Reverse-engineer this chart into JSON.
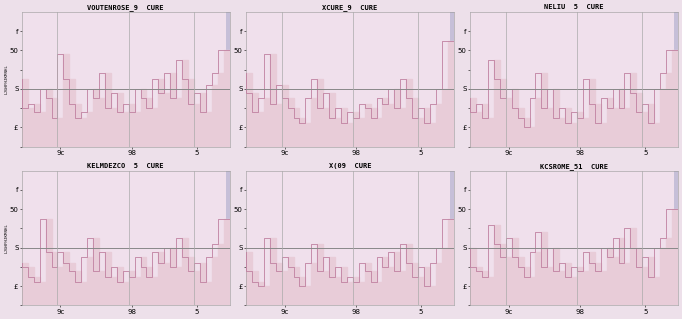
{
  "titles": [
    "VOUTENROSE_9  CURE",
    "XCURE_9  CURE",
    "NELIU  5  CURE",
    "KELMDEZCO  5  CURE",
    "X(09  CURE",
    "KCSROME_51  CURE"
  ],
  "x_tick_labels": [
    "9c",
    "98",
    "5"
  ],
  "x_tick_pos": [
    6,
    18,
    29
  ],
  "ylim": [
    0,
    7
  ],
  "y_ticks": [
    0,
    1,
    2,
    3,
    4,
    5,
    6
  ],
  "y_tick_labels": [
    "",
    "£",
    "",
    "S",
    "",
    "50",
    "f"
  ],
  "hline": 3,
  "bar_fill_color": "#e8ccd8",
  "bar_edge_color": "#c080a0",
  "bg_color": "#f0e0ec",
  "fig_color": "#ede0ea",
  "vbar_color": "#aaaacc",
  "n": 35,
  "ylabel_text": "LJGHFHJKMNHL",
  "series": [
    [
      3.5,
      2.0,
      2.2,
      1.8,
      3.0,
      2.5,
      1.5,
      4.8,
      3.5,
      2.2,
      1.5,
      1.8,
      3.0,
      2.5,
      3.8,
      2.0,
      2.8,
      1.8,
      2.2,
      1.8,
      3.0,
      2.5,
      2.0,
      3.5,
      2.8,
      3.8,
      2.5,
      4.5,
      3.5,
      2.2,
      2.8,
      1.8,
      3.2,
      3.8,
      5.0
    ],
    [
      3.8,
      2.8,
      1.8,
      2.5,
      4.8,
      2.2,
      3.2,
      2.5,
      2.0,
      1.5,
      1.2,
      2.5,
      3.5,
      2.0,
      2.8,
      1.5,
      2.0,
      1.2,
      1.8,
      1.5,
      2.2,
      2.0,
      1.5,
      2.5,
      2.2,
      3.0,
      2.0,
      3.5,
      2.5,
      1.5,
      2.0,
      1.2,
      2.2,
      3.0,
      5.5
    ],
    [
      2.5,
      1.8,
      2.2,
      1.5,
      4.5,
      3.5,
      2.5,
      3.0,
      2.0,
      1.5,
      1.0,
      2.5,
      3.8,
      2.0,
      3.0,
      1.5,
      2.0,
      1.2,
      1.8,
      1.5,
      3.5,
      2.2,
      1.2,
      2.5,
      2.0,
      3.0,
      2.0,
      3.8,
      2.8,
      1.8,
      2.2,
      1.2,
      3.0,
      3.8,
      5.0
    ],
    [
      2.2,
      2.0,
      1.5,
      1.2,
      4.5,
      2.8,
      2.0,
      2.8,
      2.2,
      1.8,
      1.2,
      2.5,
      3.5,
      1.8,
      2.8,
      1.5,
      2.0,
      1.2,
      1.8,
      1.5,
      2.5,
      2.0,
      1.5,
      2.8,
      2.2,
      3.0,
      2.0,
      3.5,
      2.5,
      1.8,
      2.2,
      1.2,
      2.5,
      3.2,
      4.5
    ],
    [
      2.8,
      1.8,
      1.2,
      1.0,
      3.5,
      2.2,
      1.8,
      2.5,
      2.0,
      1.5,
      1.0,
      2.2,
      3.2,
      1.8,
      2.5,
      1.5,
      2.0,
      1.2,
      1.5,
      1.2,
      2.2,
      1.8,
      1.2,
      2.5,
      2.0,
      2.8,
      1.8,
      3.2,
      2.2,
      1.5,
      2.0,
      1.0,
      2.2,
      3.0,
      4.5
    ],
    [
      3.0,
      2.0,
      1.8,
      1.5,
      4.2,
      3.2,
      2.5,
      3.5,
      2.5,
      2.0,
      1.5,
      2.8,
      3.8,
      2.0,
      3.0,
      1.8,
      2.2,
      1.5,
      2.0,
      1.8,
      2.8,
      2.2,
      1.8,
      3.0,
      2.5,
      3.5,
      2.2,
      4.0,
      3.0,
      2.0,
      2.5,
      1.5,
      3.0,
      3.5,
      5.0
    ]
  ]
}
